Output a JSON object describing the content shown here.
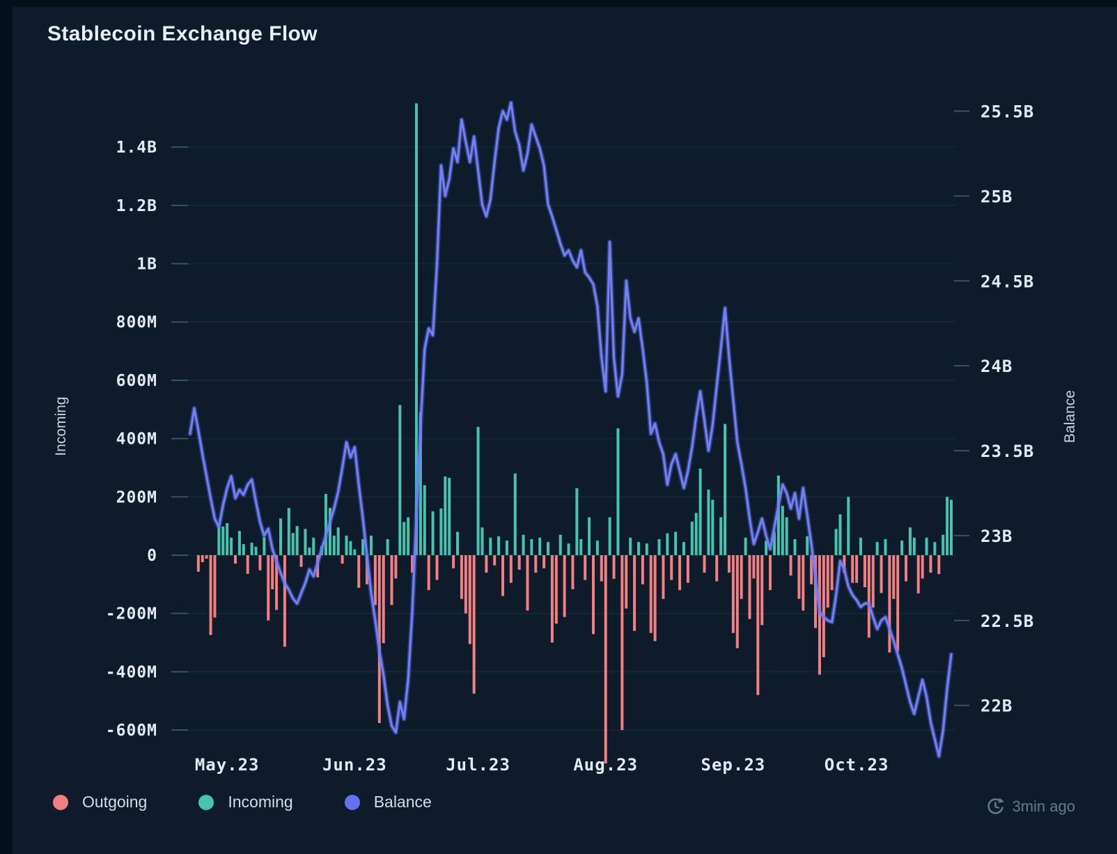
{
  "title": "Stablecoin Exchange Flow",
  "footer": {
    "updated": "3min ago",
    "icon": "refresh-clock-icon"
  },
  "colors": {
    "background": "#050e1b",
    "card": "#0d1b2b",
    "grid": "#16293b",
    "tick_mark": "#3a5064",
    "axis_text": "#e3eaf1",
    "axis_title_text": "#c9d4de",
    "legend_text": "#d5dde6",
    "muted_text": "#66798c",
    "outgoing": "#f28080",
    "incoming": "#47c3ae",
    "balance": "#6272f1"
  },
  "chart_data": {
    "type": "bar",
    "subtype": "daily bar flows (incoming/outgoing) with balance line on secondary axis",
    "title": "Stablecoin Exchange Flow",
    "start_date": "2023-04-22",
    "x_labels": [
      {
        "label": "May.23",
        "day_index": 9
      },
      {
        "label": "Jun.23",
        "day_index": 40
      },
      {
        "label": "Jul.23",
        "day_index": 70
      },
      {
        "label": "Aug.23",
        "day_index": 101
      },
      {
        "label": "Sep.23",
        "day_index": 132
      },
      {
        "label": "Oct.23",
        "day_index": 162
      }
    ],
    "left_axis": {
      "title": "Incoming",
      "units": "M",
      "max": 1570,
      "min": -760,
      "ticks": [
        {
          "label": "1.4B",
          "value": 1400
        },
        {
          "label": "1.2B",
          "value": 1200
        },
        {
          "label": "1B",
          "value": 1000
        },
        {
          "label": "800M",
          "value": 800
        },
        {
          "label": "600M",
          "value": 600
        },
        {
          "label": "400M",
          "value": 400
        },
        {
          "label": "200M",
          "value": 200
        },
        {
          "label": "0",
          "value": 0
        },
        {
          "label": "-200M",
          "value": -200
        },
        {
          "label": "-400M",
          "value": -400
        },
        {
          "label": "-600M",
          "value": -600
        }
      ]
    },
    "right_axis": {
      "title": "Balance",
      "units": "B",
      "max": 25.58,
      "min": 21.58,
      "ticks": [
        {
          "label": "25.5B",
          "value": 25.5
        },
        {
          "label": "25B",
          "value": 25.0
        },
        {
          "label": "24.5B",
          "value": 24.5
        },
        {
          "label": "24B",
          "value": 24.0
        },
        {
          "label": "23.5B",
          "value": 23.5
        },
        {
          "label": "23B",
          "value": 23.0
        },
        {
          "label": "22.5B",
          "value": 22.5
        },
        {
          "label": "22B",
          "value": 22.0
        }
      ]
    },
    "series": [
      {
        "name": "Outgoing",
        "type": "bar",
        "axis": "left",
        "color": "#f28080",
        "values": [
          0,
          0,
          -57,
          -24,
          -12,
          -274,
          -214,
          0,
          0,
          0,
          0,
          -29,
          0,
          0,
          -64,
          0,
          0,
          -52,
          0,
          -224,
          -117,
          -188,
          0,
          -314,
          0,
          0,
          0,
          -40,
          0,
          0,
          0,
          -76,
          0,
          0,
          0,
          0,
          0,
          -29,
          0,
          0,
          0,
          -112,
          0,
          -100,
          0,
          -171,
          -576,
          -302,
          0,
          -171,
          -80,
          0,
          0,
          0,
          -60,
          0,
          0,
          0,
          -120,
          0,
          -85,
          0,
          0,
          0,
          -45,
          0,
          -150,
          -200,
          -305,
          -475,
          0,
          0,
          -60,
          0,
          -35,
          0,
          -140,
          0,
          -95,
          0,
          -50,
          0,
          -190,
          0,
          -60,
          0,
          -45,
          0,
          -300,
          -235,
          0,
          -212,
          0,
          -117,
          0,
          0,
          -85,
          0,
          -271,
          0,
          -90,
          -715,
          0,
          -81,
          0,
          -600,
          -183,
          0,
          -260,
          0,
          -100,
          0,
          -267,
          -295,
          0,
          -150,
          0,
          -85,
          0,
          -120,
          0,
          -95,
          0,
          0,
          0,
          -60,
          0,
          0,
          -90,
          0,
          0,
          -60,
          -267,
          -319,
          -150,
          0,
          -219,
          -80,
          -480,
          -240,
          0,
          -120,
          0,
          0,
          0,
          0,
          -70,
          0,
          -150,
          -190,
          0,
          -100,
          -250,
          -410,
          -350,
          -180,
          -120,
          0,
          0,
          -60,
          0,
          -95,
          -95,
          0,
          -110,
          -283,
          -180,
          0,
          -130,
          0,
          -334,
          -150,
          -330,
          0,
          -90,
          0,
          0,
          -131,
          -80,
          0,
          -60,
          0,
          -65,
          0,
          0,
          0
        ]
      },
      {
        "name": "Incoming",
        "type": "bar",
        "axis": "left",
        "color": "#47c3ae",
        "values": [
          0,
          0,
          0,
          0,
          0,
          0,
          0,
          107,
          98,
          110,
          60,
          0,
          83,
          38,
          0,
          43,
          29,
          0,
          62,
          0,
          0,
          0,
          126,
          0,
          162,
          76,
          100,
          0,
          90,
          26,
          60,
          0,
          31,
          210,
          162,
          67,
          95,
          0,
          67,
          48,
          20,
          0,
          55,
          0,
          67,
          0,
          0,
          0,
          55,
          0,
          0,
          515,
          114,
          130,
          0,
          1550,
          490,
          240,
          0,
          150,
          0,
          160,
          270,
          265,
          0,
          80,
          0,
          0,
          0,
          0,
          440,
          95,
          0,
          60,
          0,
          65,
          0,
          50,
          0,
          280,
          0,
          70,
          0,
          55,
          0,
          60,
          0,
          45,
          0,
          0,
          70,
          0,
          40,
          0,
          230,
          55,
          0,
          130,
          0,
          50,
          0,
          0,
          130,
          0,
          435,
          0,
          0,
          60,
          0,
          45,
          0,
          40,
          0,
          0,
          55,
          0,
          75,
          0,
          80,
          0,
          45,
          0,
          115,
          145,
          297,
          0,
          225,
          190,
          0,
          130,
          450,
          0,
          0,
          0,
          0,
          60,
          0,
          0,
          0,
          0,
          50,
          0,
          80,
          273,
          169,
          130,
          0,
          55,
          0,
          0,
          65,
          0,
          0,
          0,
          0,
          0,
          0,
          90,
          140,
          0,
          200,
          0,
          0,
          60,
          0,
          0,
          0,
          45,
          0,
          55,
          0,
          0,
          0,
          50,
          0,
          95,
          60,
          0,
          0,
          60,
          0,
          45,
          0,
          70,
          200,
          190
        ]
      },
      {
        "name": "Balance",
        "type": "line",
        "axis": "right",
        "color": "#6272f1",
        "values": [
          23.6,
          23.75,
          23.62,
          23.48,
          23.35,
          23.22,
          23.1,
          23.05,
          23.18,
          23.28,
          23.35,
          23.22,
          23.27,
          23.24,
          23.3,
          23.33,
          23.2,
          23.08,
          23.0,
          23.04,
          22.92,
          22.85,
          22.78,
          22.72,
          22.68,
          22.63,
          22.6,
          22.66,
          22.72,
          22.8,
          22.76,
          22.84,
          22.92,
          23.0,
          23.08,
          23.16,
          23.26,
          23.4,
          23.55,
          23.46,
          23.52,
          23.3,
          23.1,
          22.88,
          22.66,
          22.5,
          22.32,
          22.18,
          22.0,
          21.88,
          21.84,
          22.02,
          21.92,
          22.15,
          22.55,
          23.1,
          23.65,
          24.1,
          24.22,
          24.18,
          24.6,
          25.18,
          25.0,
          25.1,
          25.28,
          25.2,
          25.45,
          25.32,
          25.2,
          25.35,
          25.15,
          24.95,
          24.88,
          24.98,
          25.2,
          25.4,
          25.5,
          25.45,
          25.55,
          25.38,
          25.3,
          25.15,
          25.25,
          25.42,
          25.35,
          25.28,
          25.18,
          24.95,
          24.88,
          24.8,
          24.72,
          24.65,
          24.68,
          24.62,
          24.58,
          24.68,
          24.55,
          24.52,
          24.48,
          24.35,
          24.05,
          23.85,
          24.73,
          24.05,
          23.82,
          23.95,
          24.5,
          24.28,
          24.2,
          24.28,
          24.1,
          23.9,
          23.6,
          23.66,
          23.55,
          23.48,
          23.3,
          23.42,
          23.48,
          23.38,
          23.28,
          23.38,
          23.52,
          23.7,
          23.85,
          23.68,
          23.5,
          23.65,
          23.88,
          24.1,
          24.34,
          24.05,
          23.8,
          23.55,
          23.42,
          23.28,
          23.1,
          22.95,
          23.02,
          23.1,
          23.0,
          22.92,
          23.05,
          23.18,
          23.3,
          23.25,
          23.16,
          23.25,
          23.1,
          23.28,
          23.12,
          22.95,
          22.75,
          22.55,
          22.52,
          22.5,
          22.49,
          22.65,
          22.85,
          22.8,
          22.7,
          22.65,
          22.62,
          22.58,
          22.6,
          22.6,
          22.52,
          22.45,
          22.5,
          22.52,
          22.45,
          22.38,
          22.3,
          22.22,
          22.12,
          22.02,
          21.95,
          22.05,
          22.15,
          22.05,
          21.9,
          21.8,
          21.7,
          21.85,
          22.1,
          22.3
        ]
      }
    ],
    "grid": true,
    "legend_position": "bottom-left"
  }
}
